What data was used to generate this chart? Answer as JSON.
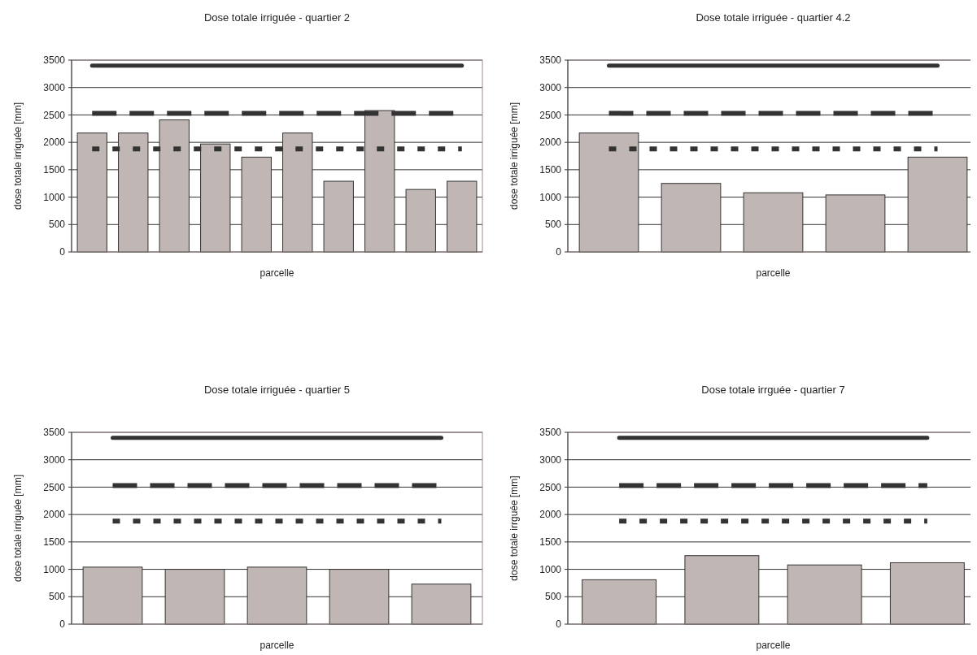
{
  "chart_data": [
    {
      "type": "bar",
      "title": "Dose totale irriguée - quartier 2",
      "xlabel": "parcelle",
      "ylabel": "dose totale irriguée [mm]",
      "categories": [
        null,
        null,
        null,
        null,
        null,
        null,
        null,
        null,
        null,
        null
      ],
      "values": [
        2170,
        2170,
        2410,
        1970,
        1730,
        2170,
        1290,
        2580,
        1140,
        1290
      ],
      "color": "#c0b6b4",
      "ylim": [
        0,
        3500
      ],
      "yticks": [
        0,
        500,
        1000,
        1500,
        2000,
        2500,
        3000,
        3500
      ],
      "grid": "y",
      "tick_labels": "y",
      "ref_lines": [
        {
          "axis": "y",
          "value": 3400,
          "color": "#333333",
          "line_style": "solid"
        },
        {
          "axis": "y",
          "value": 2530,
          "color": "#333333",
          "line_style": "dashed"
        },
        {
          "axis": "y",
          "value": 1880,
          "color": "#333333",
          "line_style": "dotted"
        }
      ]
    },
    {
      "type": "bar",
      "title": "Dose totale irriguée - quartier 4.2",
      "xlabel": "parcelle",
      "ylabel": "dose totale irriguée [mm]",
      "categories": [
        null,
        null,
        null,
        null,
        null
      ],
      "values": [
        2170,
        1250,
        1080,
        1040,
        1730
      ],
      "color": "#c0b6b4",
      "ylim": [
        0,
        3500
      ],
      "yticks": [
        0,
        500,
        1000,
        1500,
        2000,
        2500,
        3000,
        3500
      ],
      "grid": "y",
      "tick_labels": "y",
      "ref_lines": [
        {
          "axis": "y",
          "value": 3400,
          "color": "#333333",
          "line_style": "solid"
        },
        {
          "axis": "y",
          "value": 2530,
          "color": "#333333",
          "line_style": "dashed"
        },
        {
          "axis": "y",
          "value": 1880,
          "color": "#333333",
          "line_style": "dotted"
        }
      ]
    },
    {
      "type": "bar",
      "title": "Dose totale irriguée - quartier 5",
      "xlabel": "parcelle",
      "ylabel": "dose totale irriguée [mm]",
      "categories": [
        null,
        null,
        null,
        null,
        null
      ],
      "values": [
        1040,
        1000,
        1040,
        1000,
        730
      ],
      "color": "#c0b6b4",
      "ylim": [
        0,
        3500
      ],
      "yticks": [
        0,
        500,
        1000,
        1500,
        2000,
        2500,
        3000,
        3500
      ],
      "grid": "y",
      "tick_labels": "y",
      "ref_lines": [
        {
          "axis": "y",
          "value": 3400,
          "color": "#333333",
          "line_style": "solid"
        },
        {
          "axis": "y",
          "value": 2530,
          "color": "#333333",
          "line_style": "dashed"
        },
        {
          "axis": "y",
          "value": 1880,
          "color": "#333333",
          "line_style": "dotted"
        }
      ]
    },
    {
      "type": "bar",
      "title": "Dose totale irrguée - quartier 7",
      "xlabel": "parcelle",
      "ylabel": "dose totale irrguée [mm]",
      "categories": [
        null,
        null,
        null,
        null
      ],
      "values": [
        810,
        1250,
        1080,
        1120
      ],
      "color": "#c0b6b4",
      "ylim": [
        0,
        3500
      ],
      "yticks": [
        0,
        500,
        1000,
        1500,
        2000,
        2500,
        3000,
        3500
      ],
      "grid": "y",
      "tick_labels": "y",
      "ref_lines": [
        {
          "axis": "y",
          "value": 3400,
          "color": "#333333",
          "line_style": "solid"
        },
        {
          "axis": "y",
          "value": 2530,
          "color": "#333333",
          "line_style": "dashed"
        },
        {
          "axis": "y",
          "value": 1880,
          "color": "#333333",
          "line_style": "dotted"
        }
      ]
    }
  ]
}
